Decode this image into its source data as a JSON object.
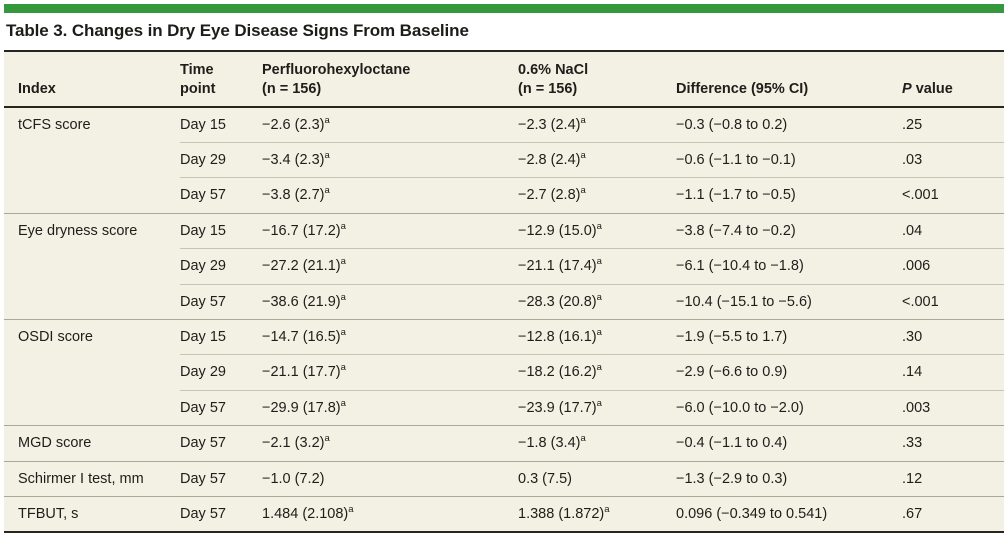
{
  "colors": {
    "accent_green": "#34993d",
    "table_background": "#f3f0e4",
    "rule_dark": "#26261f",
    "row_separator": "#c7c4b4",
    "group_separator": "#aaa89b"
  },
  "table": {
    "title": "Table 3. Changes in Dry Eye Disease Signs From Baseline",
    "columns": [
      {
        "key": "index",
        "lines": [
          "Index"
        ]
      },
      {
        "key": "time-point",
        "lines": [
          "Time",
          "point"
        ]
      },
      {
        "key": "perfluorohexyloctane",
        "lines": [
          "Perfluorohexyloctane",
          "(n = 156)"
        ]
      },
      {
        "key": "nacl",
        "lines": [
          "0.6% NaCl",
          "(n = 156)"
        ]
      },
      {
        "key": "difference",
        "lines": [
          "Difference (95% CI)"
        ]
      },
      {
        "key": "p-value",
        "lines": [
          "P value"
        ],
        "italic_first_word": true
      }
    ],
    "groups": [
      {
        "index": "tCFS score",
        "rows": [
          {
            "time": "Day 15",
            "pfh": {
              "text": "−2.6 (2.3)",
              "sup": "a"
            },
            "nacl": {
              "text": "−2.3 (2.4)",
              "sup": "a"
            },
            "diff": "−0.3 (−0.8 to 0.2)",
            "p": ".25"
          },
          {
            "time": "Day 29",
            "pfh": {
              "text": "−3.4 (2.3)",
              "sup": "a"
            },
            "nacl": {
              "text": "−2.8 (2.4)",
              "sup": "a"
            },
            "diff": "−0.6 (−1.1 to −0.1)",
            "p": ".03"
          },
          {
            "time": "Day 57",
            "pfh": {
              "text": "−3.8 (2.7)",
              "sup": "a"
            },
            "nacl": {
              "text": "−2.7 (2.8)",
              "sup": "a"
            },
            "diff": "−1.1 (−1.7 to −0.5)",
            "p": "<.001"
          }
        ]
      },
      {
        "index": "Eye dryness score",
        "rows": [
          {
            "time": "Day 15",
            "pfh": {
              "text": "−16.7 (17.2)",
              "sup": "a"
            },
            "nacl": {
              "text": "−12.9 (15.0)",
              "sup": "a"
            },
            "diff": "−3.8 (−7.4 to −0.2)",
            "p": ".04"
          },
          {
            "time": "Day 29",
            "pfh": {
              "text": "−27.2 (21.1)",
              "sup": "a"
            },
            "nacl": {
              "text": "−21.1 (17.4)",
              "sup": "a"
            },
            "diff": "−6.1 (−10.4 to −1.8)",
            "p": ".006"
          },
          {
            "time": "Day 57",
            "pfh": {
              "text": "−38.6 (21.9)",
              "sup": "a"
            },
            "nacl": {
              "text": "−28.3 (20.8)",
              "sup": "a"
            },
            "diff": "−10.4 (−15.1 to −5.6)",
            "p": "<.001"
          }
        ]
      },
      {
        "index": "OSDI score",
        "rows": [
          {
            "time": "Day 15",
            "pfh": {
              "text": "−14.7 (16.5)",
              "sup": "a"
            },
            "nacl": {
              "text": "−12.8 (16.1)",
              "sup": "a"
            },
            "diff": "−1.9 (−5.5 to 1.7)",
            "p": ".30"
          },
          {
            "time": "Day 29",
            "pfh": {
              "text": "−21.1 (17.7)",
              "sup": "a"
            },
            "nacl": {
              "text": "−18.2 (16.2)",
              "sup": "a"
            },
            "diff": "−2.9 (−6.6 to 0.9)",
            "p": ".14"
          },
          {
            "time": "Day 57",
            "pfh": {
              "text": "−29.9 (17.8)",
              "sup": "a"
            },
            "nacl": {
              "text": "−23.9 (17.7)",
              "sup": "a"
            },
            "diff": "−6.0 (−10.0 to −2.0)",
            "p": ".003"
          }
        ]
      },
      {
        "index": "MGD score",
        "rows": [
          {
            "time": "Day 57",
            "pfh": {
              "text": "−2.1 (3.2)",
              "sup": "a"
            },
            "nacl": {
              "text": "−1.8 (3.4)",
              "sup": "a"
            },
            "diff": "−0.4 (−1.1 to 0.4)",
            "p": ".33"
          }
        ]
      },
      {
        "index": "Schirmer I test, mm",
        "rows": [
          {
            "time": "Day 57",
            "pfh": {
              "text": "−1.0 (7.2)"
            },
            "nacl": {
              "text": "0.3 (7.5)"
            },
            "diff": "−1.3 (−2.9 to 0.3)",
            "p": ".12"
          }
        ]
      },
      {
        "index": "TFBUT, s",
        "rows": [
          {
            "time": "Day 57",
            "pfh": {
              "text": "1.484 (2.108)",
              "sup": "a"
            },
            "nacl": {
              "text": "1.388 (1.872)",
              "sup": "a"
            },
            "diff": "0.096 (−0.349 to 0.541)",
            "p": ".67"
          }
        ]
      }
    ]
  }
}
